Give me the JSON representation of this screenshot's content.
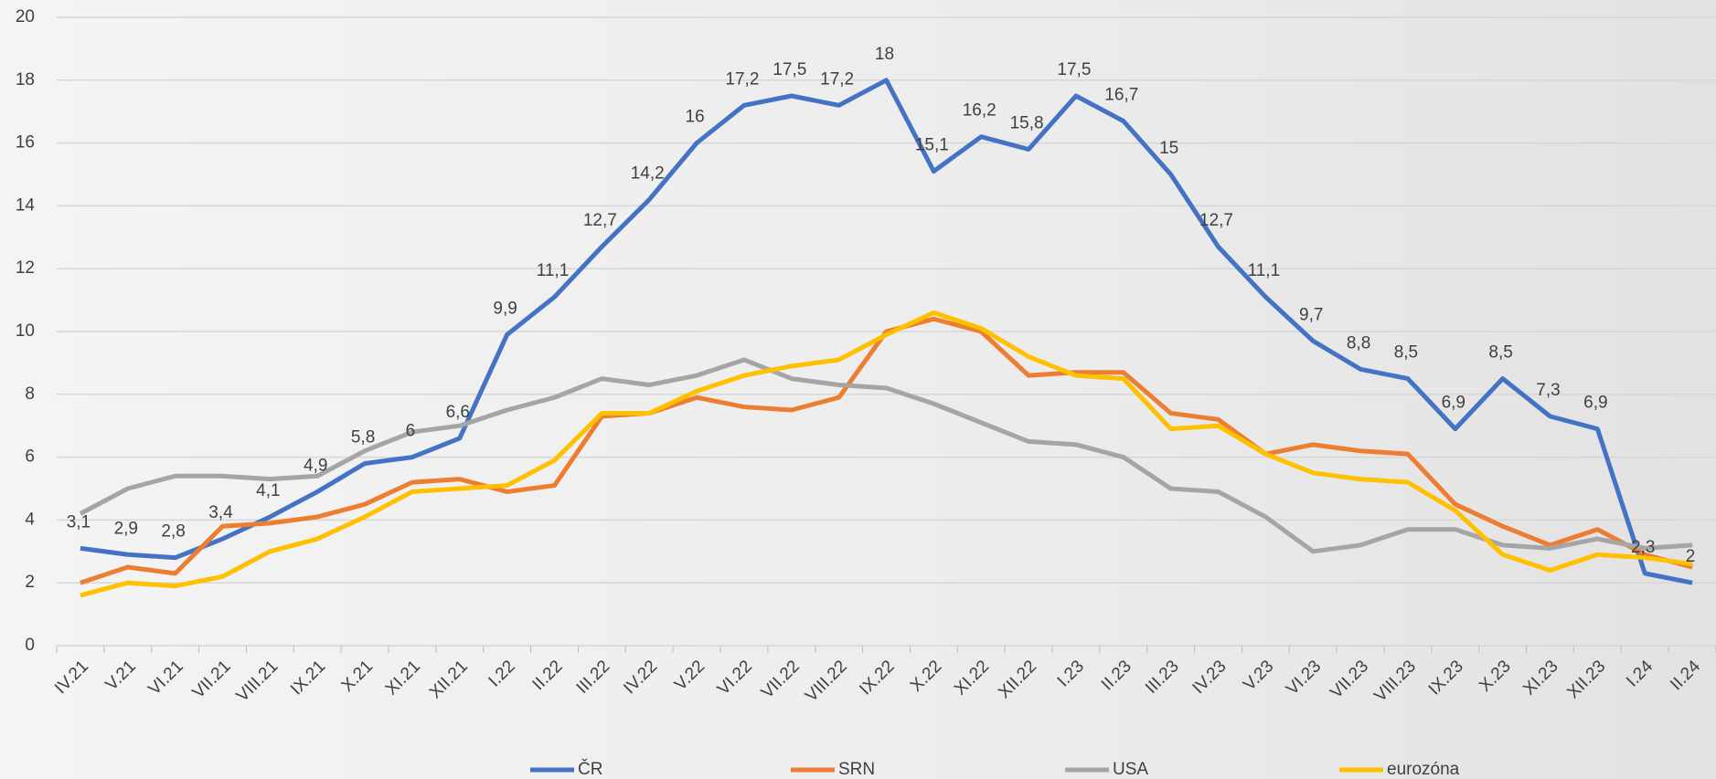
{
  "chart_data": {
    "type": "line",
    "categories": [
      "IV.21",
      "V.21",
      "VI.21",
      "VII.21",
      "VIII.21",
      "IX.21",
      "X.21",
      "XI.21",
      "XII.21",
      "I.22",
      "II.22",
      "III.22",
      "IV.22",
      "V.22",
      "VI.22",
      "VII.22",
      "VIII.22",
      "IX.22",
      "X.22",
      "XI.22",
      "XII.22",
      "I.23",
      "II.23",
      "III.23",
      "IV.23",
      "V.23",
      "VI.23",
      "VII.23",
      "VIII.23",
      "IX.23",
      "X.23",
      "XI.23",
      "XII.23",
      "I.24",
      "II.24"
    ],
    "series": [
      {
        "name": "ČR",
        "color": "#4472c4",
        "values": [
          3.1,
          2.9,
          2.8,
          3.4,
          4.1,
          4.9,
          5.8,
          6,
          6.6,
          9.9,
          11.1,
          12.7,
          14.2,
          16,
          17.2,
          17.5,
          17.2,
          18,
          15.1,
          16.2,
          15.8,
          17.5,
          16.7,
          15,
          12.7,
          11.1,
          9.7,
          8.8,
          8.5,
          6.9,
          8.5,
          7.3,
          6.9,
          2.3,
          2
        ],
        "value_labels": [
          "3,1",
          "2,9",
          "2,8",
          "3,4",
          "4,1",
          "4,9",
          "5,8",
          "6",
          "6,6",
          "9,9",
          "11,1",
          "12,7",
          "14,2",
          "16",
          "17,2",
          "17,5",
          "17,2",
          "18",
          "15,1",
          "16,2",
          "15,8",
          "17,5",
          "16,7",
          "15",
          "12,7",
          "11,1",
          "9,7",
          "8,8",
          "8,5",
          "6,9",
          "8,5",
          "7,3",
          "6,9",
          "2,3",
          "2"
        ]
      },
      {
        "name": "SRN",
        "color": "#ed7d31",
        "values": [
          2.0,
          2.5,
          2.3,
          3.8,
          3.9,
          4.1,
          4.5,
          5.2,
          5.3,
          4.9,
          5.1,
          7.3,
          7.4,
          7.9,
          7.6,
          7.5,
          7.9,
          10.0,
          10.4,
          10.0,
          8.6,
          8.7,
          8.7,
          7.4,
          7.2,
          6.1,
          6.4,
          6.2,
          6.1,
          4.5,
          3.8,
          3.2,
          3.7,
          2.9,
          2.5
        ]
      },
      {
        "name": "USA",
        "color": "#a5a5a5",
        "values": [
          4.2,
          5.0,
          5.4,
          5.4,
          5.3,
          5.4,
          6.2,
          6.8,
          7.0,
          7.5,
          7.9,
          8.5,
          8.3,
          8.6,
          9.1,
          8.5,
          8.3,
          8.2,
          7.7,
          7.1,
          6.5,
          6.4,
          6.0,
          5.0,
          4.9,
          4.1,
          3.0,
          3.2,
          3.7,
          3.7,
          3.2,
          3.1,
          3.4,
          3.1,
          3.2
        ]
      },
      {
        "name": "eurozóna",
        "color": "#ffc000",
        "values": [
          1.6,
          2.0,
          1.9,
          2.2,
          3.0,
          3.4,
          4.1,
          4.9,
          5.0,
          5.1,
          5.9,
          7.4,
          7.4,
          8.1,
          8.6,
          8.9,
          9.1,
          9.9,
          10.6,
          10.1,
          9.2,
          8.6,
          8.5,
          6.9,
          7.0,
          6.1,
          5.5,
          5.3,
          5.2,
          4.3,
          2.9,
          2.4,
          2.9,
          2.8,
          2.6
        ]
      }
    ],
    "ylim": [
      0,
      20
    ],
    "yticks": [
      0,
      2,
      4,
      6,
      8,
      10,
      12,
      14,
      16,
      18,
      20
    ],
    "grid": true,
    "legend": "bottom"
  }
}
